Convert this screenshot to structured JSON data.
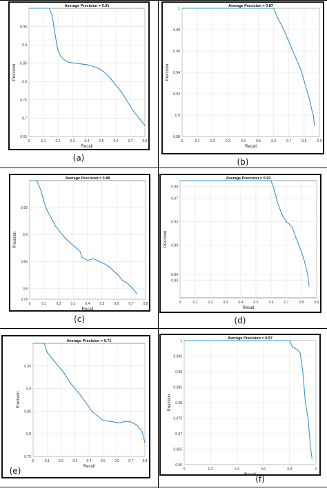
{
  "caption": "",
  "chart_data": [
    {
      "id": "a",
      "label": "(a)",
      "type": "line",
      "title": "Average Precision = 0.91",
      "xlabel": "Recall",
      "ylabel": "Precision",
      "xlim": [
        0,
        0.8
      ],
      "ylim": [
        0.65,
        1.0
      ],
      "xticks": [
        0,
        0.1,
        0.2,
        0.3,
        0.4,
        0.5,
        0.6,
        0.7,
        0.8
      ],
      "xtick_labels": [
        "0",
        "0.1",
        "0.2",
        "0.3",
        "0.4",
        "0.5",
        "0.6",
        "0.7",
        "0.8"
      ],
      "yticks": [
        0.65,
        0.7,
        0.75,
        0.8,
        0.85,
        0.9,
        0.95
      ],
      "ytick_labels": [
        "0.65",
        "0.7",
        "0.75",
        "0.8",
        "0.85",
        "0.9",
        "0.95"
      ],
      "grid": true,
      "color": "#3d8fd1",
      "x": [
        0,
        0.14,
        0.16,
        0.17,
        0.18,
        0.19,
        0.2,
        0.22,
        0.25,
        0.28,
        0.32,
        0.36,
        0.4,
        0.44,
        0.48,
        0.52,
        0.56,
        0.6,
        0.64,
        0.68,
        0.72,
        0.76,
        0.8
      ],
      "y": [
        1.0,
        1.0,
        0.98,
        0.955,
        0.93,
        0.905,
        0.885,
        0.868,
        0.857,
        0.852,
        0.85,
        0.848,
        0.846,
        0.842,
        0.836,
        0.826,
        0.81,
        0.79,
        0.77,
        0.745,
        0.72,
        0.7,
        0.68
      ]
    },
    {
      "id": "b",
      "label": "(b)",
      "type": "line",
      "title": "Average Precision = 0.87",
      "xlabel": "Recall",
      "ylabel": "Precision",
      "xlim": [
        0,
        0.9
      ],
      "ylim": [
        0.88,
        1.0
      ],
      "xticks": [
        0,
        0.1,
        0.2,
        0.3,
        0.4,
        0.5,
        0.6,
        0.7,
        0.8,
        0.9
      ],
      "xtick_labels": [
        "0",
        "0.1",
        "0.2",
        "0.3",
        "0.4",
        "0.5",
        "0.6",
        "0.7",
        "0.8",
        "0.9"
      ],
      "yticks": [
        0.88,
        0.9,
        0.92,
        0.94,
        0.96,
        0.98,
        1.0
      ],
      "ytick_labels": [
        "0.88",
        "0.9",
        "0.92",
        "0.94",
        "0.96",
        "0.98",
        "1"
      ],
      "grid": true,
      "color": "#3d8fd1",
      "x": [
        0,
        0.6,
        0.63,
        0.66,
        0.69,
        0.72,
        0.75,
        0.78,
        0.8,
        0.82,
        0.84,
        0.85,
        0.86,
        0.865,
        0.87
      ],
      "y": [
        1.0,
        1.0,
        0.99,
        0.982,
        0.972,
        0.962,
        0.952,
        0.942,
        0.932,
        0.922,
        0.912,
        0.905,
        0.9,
        0.893,
        0.89
      ]
    },
    {
      "id": "c",
      "label": "(c)",
      "type": "line",
      "title": "Average Precision = 0.88",
      "xlabel": "Recall",
      "ylabel": "Precision",
      "xlim": [
        0,
        0.8
      ],
      "ylim": [
        0.78,
        1.0
      ],
      "xticks": [
        0,
        0.1,
        0.2,
        0.3,
        0.4,
        0.5,
        0.6,
        0.7,
        0.8
      ],
      "xtick_labels": [
        "0",
        "0.1",
        "0.2",
        "0.3",
        "0.4",
        "0.5",
        "0.6",
        "0.7",
        "0.8"
      ],
      "yticks": [
        0.78,
        0.8,
        0.85,
        0.9,
        0.95
      ],
      "ytick_labels": [
        "0.78",
        "0.8",
        "0.85",
        "0.9",
        "0.95"
      ],
      "grid": true,
      "color": "#3d8fd1",
      "x": [
        0,
        0.05,
        0.08,
        0.1,
        0.12,
        0.15,
        0.18,
        0.21,
        0.24,
        0.27,
        0.3,
        0.33,
        0.35,
        0.36,
        0.4,
        0.44,
        0.48,
        0.52,
        0.55,
        0.58,
        0.61,
        0.64,
        0.67,
        0.7,
        0.72,
        0.74
      ],
      "y": [
        1.0,
        1.0,
        0.98,
        0.96,
        0.945,
        0.93,
        0.915,
        0.905,
        0.895,
        0.887,
        0.88,
        0.873,
        0.868,
        0.858,
        0.852,
        0.855,
        0.85,
        0.845,
        0.84,
        0.832,
        0.825,
        0.815,
        0.81,
        0.803,
        0.797,
        0.79
      ]
    },
    {
      "id": "d",
      "label": "(d)",
      "type": "line",
      "title": "Average Precision = 0.92",
      "xlabel": "Recall",
      "ylabel": "Precision",
      "xlim": [
        0,
        0.9
      ],
      "ylim": [
        0.8,
        1.0
      ],
      "xticks": [
        0,
        0.1,
        0.2,
        0.3,
        0.4,
        0.5,
        0.6,
        0.7,
        0.8,
        0.9
      ],
      "xtick_labels": [
        "0",
        "0.1",
        "0.2",
        "0.3",
        "0.4",
        "0.5",
        "0.6",
        "0.7",
        "0.8",
        "0.9"
      ],
      "yticks": [
        0.83,
        0.84,
        0.89,
        0.93,
        0.97,
        0.99
      ],
      "ytick_labels": [
        "0.83",
        "0.84",
        "0.89",
        "0.93",
        "0.97",
        "0.99"
      ],
      "grid": true,
      "color": "#3d8fd1",
      "x": [
        0,
        0.6,
        0.62,
        0.64,
        0.66,
        0.68,
        0.7,
        0.72,
        0.74,
        0.76,
        0.78,
        0.8,
        0.82,
        0.84,
        0.85
      ],
      "y": [
        1.0,
        1.0,
        0.985,
        0.965,
        0.95,
        0.938,
        0.93,
        0.926,
        0.92,
        0.905,
        0.892,
        0.878,
        0.862,
        0.842,
        0.82
      ]
    },
    {
      "id": "e",
      "label": "(e)",
      "type": "line",
      "title": "Average Precision = 0.71",
      "xlabel": "Recall",
      "ylabel": "Precision",
      "xlim": [
        0,
        0.8
      ],
      "ylim": [
        0.75,
        1.0
      ],
      "xticks": [
        0,
        0.1,
        0.2,
        0.3,
        0.4,
        0.5,
        0.6,
        0.7,
        0.8
      ],
      "xtick_labels": [
        "0",
        "0.1",
        "0.2",
        "0.3",
        "0.4",
        "0.5",
        "0.6",
        "0.7",
        "0.8"
      ],
      "yticks": [
        0.75,
        0.8,
        0.85,
        0.9,
        0.95
      ],
      "ytick_labels": [
        "0.75",
        "0.8",
        "0.85",
        "0.9",
        "0.95"
      ],
      "grid": true,
      "color": "#3d8fd1",
      "x": [
        0,
        0.08,
        0.1,
        0.14,
        0.18,
        0.22,
        0.26,
        0.3,
        0.34,
        0.38,
        0.42,
        0.46,
        0.5,
        0.54,
        0.58,
        0.62,
        0.66,
        0.7,
        0.74,
        0.78,
        0.8
      ],
      "y": [
        1.0,
        1.0,
        0.98,
        0.965,
        0.95,
        0.935,
        0.915,
        0.9,
        0.885,
        0.868,
        0.85,
        0.84,
        0.83,
        0.828,
        0.826,
        0.824,
        0.828,
        0.826,
        0.82,
        0.805,
        0.78
      ]
    },
    {
      "id": "f",
      "label": "(f)",
      "type": "line",
      "title": "Average Precision = 0.97",
      "xlabel": "Recall",
      "ylabel": "Precision",
      "xlim": [
        0,
        1.0
      ],
      "ylim": [
        0.96,
        1.0
      ],
      "xticks": [
        0,
        0.2,
        0.4,
        0.6,
        0.8,
        1.0
      ],
      "xtick_labels": [
        "0",
        "0.2",
        "0.4",
        "0.6",
        "0.8",
        "1"
      ],
      "yticks": [
        0.96,
        0.965,
        0.97,
        0.975,
        0.98,
        0.985,
        0.99,
        0.995,
        1.0
      ],
      "ytick_labels": [
        "0.96",
        "0.965",
        "0.97",
        "0.975",
        "0.98",
        "0.985",
        "0.99",
        "0.995",
        "1"
      ],
      "grid": true,
      "color": "#3d8fd1",
      "x": [
        0,
        0.8,
        0.82,
        0.86,
        0.88,
        0.9,
        0.92,
        0.94,
        0.95,
        0.96,
        0.97
      ],
      "y": [
        1.0,
        1.0,
        0.998,
        0.997,
        0.996,
        0.99,
        0.98,
        0.975,
        0.97,
        0.965,
        0.962
      ]
    }
  ]
}
